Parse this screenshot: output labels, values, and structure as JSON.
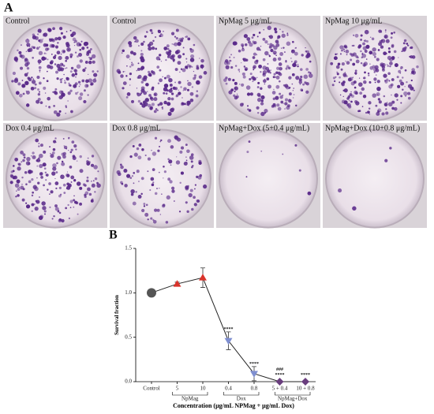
{
  "panel_a": {
    "label": "A",
    "captions": [
      [
        "Control",
        "Control",
        "NpMag 5 μg/mL",
        "NpMag 10 μg/mL"
      ],
      [
        "Dox 0.4 μg/mL",
        "Dox 0.8 μg/mL",
        "NpMag+Dox (5+0.4 μg/mL)",
        "NpMag+Dox (10+0.8 μg/mL)"
      ]
    ]
  },
  "panel_b": {
    "label": "B"
  },
  "chart_data": {
    "type": "line",
    "ylabel": "Survival fraction",
    "xlabel": "Concentration (μg/mL NPMag + μg/mL Dox)",
    "categories": [
      "Control",
      "5",
      "10",
      "0.4",
      "0.8",
      "5 + 0.4",
      "10 + 0.8"
    ],
    "group_labels": [
      null,
      "NpMag",
      "NpMag",
      "Dox",
      "Dox",
      "NpMag+Dox",
      "NpMag+Dox"
    ],
    "values": [
      1.0,
      1.1,
      1.17,
      0.46,
      0.09,
      0.0,
      0.0
    ],
    "errors": [
      0.0,
      0.02,
      0.11,
      0.1,
      0.08,
      0.01,
      0.01
    ],
    "colors": [
      "#555555",
      "#d9332b",
      "#d9332b",
      "#7f8fd0",
      "#7f8fd0",
      "#6a3e7e",
      "#6a3e7e"
    ],
    "markers": [
      "circle",
      "triangle-up",
      "triangle-up",
      "triangle-down",
      "triangle-down",
      "diamond",
      "diamond"
    ],
    "stars": [
      null,
      null,
      null,
      "****",
      "****",
      "****",
      "****"
    ],
    "hashes": [
      null,
      null,
      null,
      null,
      null,
      "###",
      null
    ],
    "ylim": [
      0,
      1.5
    ],
    "yticks": [
      {
        "value": 0,
        "label": "0.0"
      },
      {
        "value": 0.5,
        "label": "0.5"
      },
      {
        "value": 1,
        "label": "1.0"
      },
      {
        "value": 1.5,
        "label": "1.5"
      }
    ]
  }
}
